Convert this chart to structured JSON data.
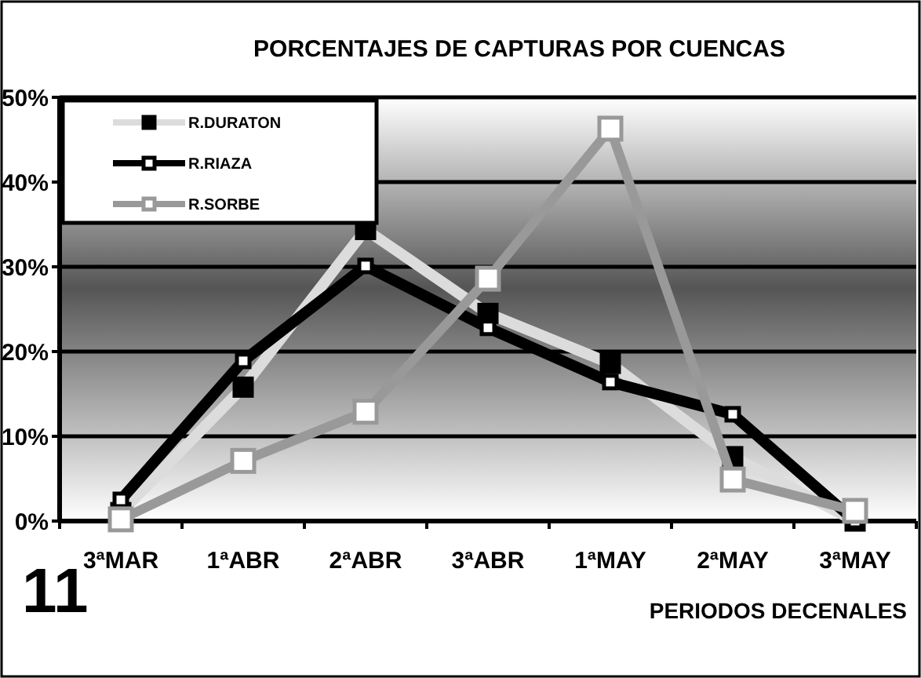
{
  "chart_data": {
    "type": "line",
    "title": "PORCENTAJES DE CAPTURAS POR CUENCAS",
    "xlabel": "PERIODOS DECENALES",
    "categories": [
      "3ªMAR",
      "1ªABR",
      "2ªABR",
      "3ªABR",
      "1ªMAY",
      "2ªMAY",
      "3ªMAY"
    ],
    "series": [
      {
        "name": "R.DURATON",
        "color": "#dcdcdc",
        "marker": "square",
        "values": [
          1,
          15.8,
          34.4,
          24.5,
          18.6,
          7.6,
          0
        ]
      },
      {
        "name": "R.RIAZA",
        "color": "#000000",
        "marker": "square",
        "values": [
          2.5,
          18.9,
          30.1,
          22.8,
          16.4,
          12.6,
          0
        ]
      },
      {
        "name": "R.SORBE",
        "color": "#999999",
        "marker": "square",
        "values": [
          0.2,
          7.1,
          12.9,
          28.6,
          46.3,
          4.9,
          1.2
        ]
      }
    ],
    "ylim": [
      0,
      50
    ],
    "yticks": [
      {
        "value": 0,
        "label": "0%"
      },
      {
        "value": 10,
        "label": "10%"
      },
      {
        "value": 20,
        "label": "20%"
      },
      {
        "value": 30,
        "label": "30%"
      },
      {
        "value": 40,
        "label": "40%"
      },
      {
        "value": 50,
        "label": "50%"
      }
    ],
    "grid": "y",
    "legend": "top left",
    "annotations": [
      "11"
    ]
  }
}
